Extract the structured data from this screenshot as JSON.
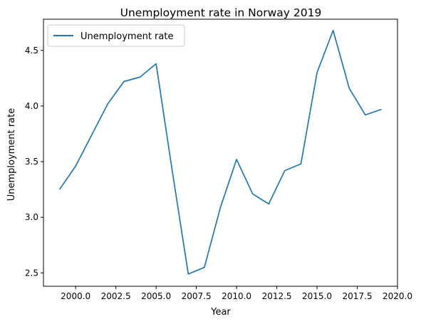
{
  "chart_data": {
    "type": "line",
    "title": "Unemployment rate in Norway 2019",
    "xlabel": "Year",
    "ylabel": "Unemployment rate",
    "xlim": [
      1998.0,
      2020.0
    ],
    "ylim": [
      2.38,
      4.78
    ],
    "x_ticks": [
      2000.0,
      2002.5,
      2005.0,
      2007.5,
      2010.0,
      2012.5,
      2015.0,
      2017.5,
      2020.0
    ],
    "x_tick_labels": [
      "2000.0",
      "2002.5",
      "2005.0",
      "2007.5",
      "2010.0",
      "2012.5",
      "2015.0",
      "2017.5",
      "2020.0"
    ],
    "y_ticks": [
      2.5,
      3.0,
      3.5,
      4.0,
      4.5
    ],
    "y_tick_labels": [
      "2.5",
      "3.0",
      "3.5",
      "4.0",
      "4.5"
    ],
    "grid": false,
    "legend_position": "top-left",
    "series": [
      {
        "name": "Unemployment rate",
        "color": "#1f77b4",
        "x": [
          1999,
          2000,
          2001,
          2002,
          2003,
          2004,
          2005,
          2006,
          2007,
          2008,
          2009,
          2010,
          2011,
          2012,
          2013,
          2014,
          2015,
          2016,
          2017,
          2018,
          2019
        ],
        "y": [
          3.25,
          3.46,
          3.74,
          4.02,
          4.22,
          4.26,
          4.38,
          3.42,
          2.49,
          2.55,
          3.09,
          3.52,
          3.21,
          3.12,
          3.42,
          3.48,
          4.3,
          4.68,
          4.16,
          3.92,
          3.97
        ]
      }
    ]
  }
}
